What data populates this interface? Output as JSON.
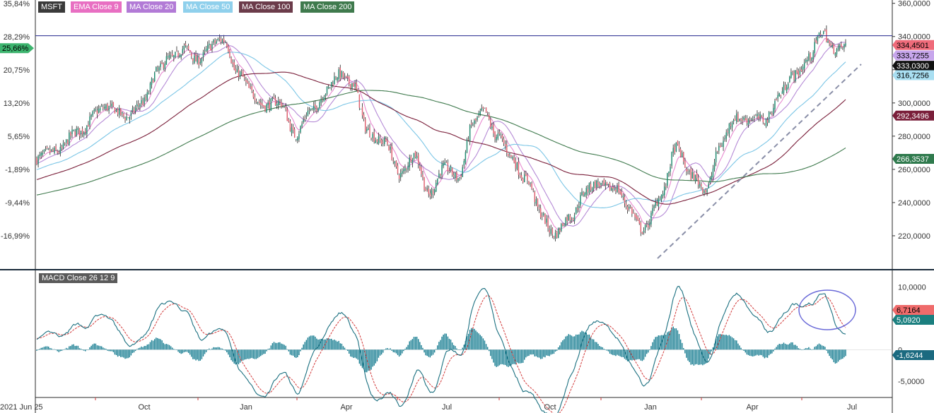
{
  "colors": {
    "up": "#1f8a70",
    "down": "#e06070",
    "wick": "#222222",
    "ema9": "#e88ad0",
    "ma20": "#b58ad6",
    "ma50": "#7cc6e6",
    "ma100": "#7a1f3a",
    "ma200": "#3f7a4d",
    "macd": "#1b7080",
    "signal": "#d23a3a",
    "hist": "#1b7f93",
    "resistance": "#3b3f9a",
    "trendline": "#8a8fa8",
    "circle": "#6a6ad8"
  },
  "legend": {
    "symbol": "MSFT",
    "items": [
      {
        "label": "EMA Close 9",
        "color": "#e86fc2"
      },
      {
        "label": "MA Close 20",
        "color": "#b27ad6"
      },
      {
        "label": "MA Close 50",
        "color": "#7cc6e6"
      },
      {
        "label": "MA Close 100",
        "color": "#6b3b4a"
      },
      {
        "label": "MA Close 200",
        "color": "#3f7a4d"
      }
    ]
  },
  "macd_label": "MACD Close 26 12 9",
  "chart_data": [
    {
      "type": "candlestick",
      "title": "MSFT",
      "x_ticks": [
        "2021 Jun 25",
        "Oct",
        "Jan",
        "Apr",
        "Jul",
        "Oct",
        "Jan",
        "Apr",
        "Jul"
      ],
      "ylim": [
        200,
        362
      ],
      "y_ticks_right": [
        "360,0000",
        "340,0000",
        "320,0000",
        "300,0000",
        "280,0000",
        "260,0000",
        "240,0000",
        "220,0000"
      ],
      "y_ticks_right_values": [
        360,
        340,
        320,
        300,
        280,
        260,
        240,
        220
      ],
      "y_ticks_left": [
        "35,84%",
        "28,29%",
        "20,75%",
        "13,20%",
        "5,65%",
        "-1,89%",
        "-9,44%",
        "-16,99%"
      ],
      "y_ticks_left_values": [
        35.84,
        28.29,
        20.75,
        13.2,
        5.65,
        -1.89,
        -9.44,
        -16.99
      ],
      "percent_reference_price": 265.0,
      "current_pct_label": "25,66%",
      "close_anchors": [
        [
          0,
          266
        ],
        [
          14,
          272
        ],
        [
          28,
          282
        ],
        [
          40,
          294
        ],
        [
          52,
          298
        ],
        [
          62,
          290
        ],
        [
          72,
          302
        ],
        [
          82,
          318
        ],
        [
          90,
          328
        ],
        [
          100,
          332
        ],
        [
          108,
          326
        ],
        [
          118,
          334
        ],
        [
          128,
          338
        ],
        [
          136,
          318
        ],
        [
          146,
          306
        ],
        [
          156,
          298
        ],
        [
          166,
          300
        ],
        [
          176,
          280
        ],
        [
          186,
          296
        ],
        [
          196,
          306
        ],
        [
          206,
          318
        ],
        [
          214,
          312
        ],
        [
          224,
          284
        ],
        [
          236,
          276
        ],
        [
          246,
          258
        ],
        [
          256,
          268
        ],
        [
          266,
          246
        ],
        [
          276,
          260
        ],
        [
          286,
          256
        ],
        [
          296,
          286
        ],
        [
          304,
          296
        ],
        [
          312,
          280
        ],
        [
          322,
          268
        ],
        [
          332,
          254
        ],
        [
          342,
          234
        ],
        [
          352,
          220
        ],
        [
          362,
          232
        ],
        [
          372,
          246
        ],
        [
          382,
          252
        ],
        [
          392,
          248
        ],
        [
          402,
          238
        ],
        [
          412,
          222
        ],
        [
          424,
          246
        ],
        [
          434,
          272
        ],
        [
          444,
          258
        ],
        [
          454,
          246
        ],
        [
          464,
          276
        ],
        [
          474,
          290
        ],
        [
          484,
          292
        ],
        [
          494,
          288
        ],
        [
          504,
          306
        ],
        [
          514,
          316
        ],
        [
          524,
          328
        ],
        [
          534,
          342
        ],
        [
          540,
          334
        ],
        [
          545,
          333
        ]
      ],
      "moving_averages": [
        {
          "name": "EMA Close 9",
          "color_key": "ema9",
          "period": 9,
          "kind": "ema"
        },
        {
          "name": "MA Close 20",
          "color_key": "ma20",
          "period": 20,
          "kind": "sma"
        },
        {
          "name": "MA Close 50",
          "color_key": "ma50",
          "period": 50,
          "kind": "sma"
        },
        {
          "name": "MA Close 100",
          "color_key": "ma100",
          "period": 100,
          "kind": "sma"
        },
        {
          "name": "MA Close 200",
          "color_key": "ma200",
          "period": 200,
          "kind": "sma"
        }
      ],
      "resistance_level": 340.5,
      "last_labels": [
        {
          "value": 334.4501,
          "text": "334,4501",
          "bg": "#ef6b7a",
          "fg": "#000000"
        },
        {
          "value": 333.7255,
          "text": "333,7255",
          "bg": "#c7a6ec",
          "fg": "#000000"
        },
        {
          "value": 333.03,
          "text": "333,0300",
          "bg": "#111111",
          "fg": "#ffffff"
        },
        {
          "value": 316.7256,
          "text": "316,7256",
          "bg": "#a9dff2",
          "fg": "#000000"
        },
        {
          "value": 292.3496,
          "text": "292,3496",
          "bg": "#7a1f3a",
          "fg": "#ffffff"
        },
        {
          "value": 266.3537,
          "text": "266,3537",
          "bg": "#2f7a4d",
          "fg": "#ffffff"
        }
      ]
    },
    {
      "type": "macd",
      "title": "MACD Close 26 12 9",
      "ylim": [
        -7.5,
        12.5
      ],
      "y_ticks": [
        "10,0000",
        "0",
        "-5,0000"
      ],
      "y_tick_values": [
        10,
        0,
        -5
      ],
      "last_labels": [
        {
          "value": 6.7164,
          "text": "6,7164",
          "bg": "#ef6b6b",
          "fg": "#000000"
        },
        {
          "value": 5.092,
          "text": "5,0920",
          "bg": "#1b7f7f",
          "fg": "#ffffff"
        },
        {
          "value": -1.6244,
          "text": "-1,6244",
          "bg": "#1b6a80",
          "fg": "#ffffff"
        }
      ]
    }
  ]
}
